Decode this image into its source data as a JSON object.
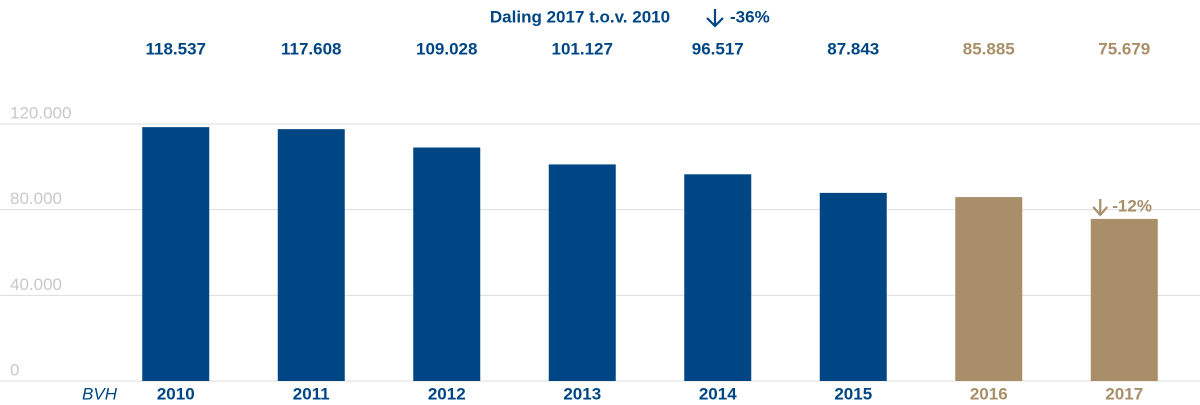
{
  "chart_data": {
    "type": "bar",
    "title": "Daling 2017 t.o.v. 2010",
    "title_change": "-36%",
    "x_label": "BVH",
    "categories": [
      "2010",
      "2011",
      "2012",
      "2013",
      "2014",
      "2015",
      "2016",
      "2017"
    ],
    "values": [
      118537,
      117608,
      109028,
      101127,
      96517,
      87843,
      85885,
      75679
    ],
    "value_labels": [
      "118.537",
      "117.608",
      "109.028",
      "101.127",
      "96.517",
      "87.843",
      "85.885",
      "75.679"
    ],
    "colors": [
      "#004684",
      "#004684",
      "#004684",
      "#004684",
      "#004684",
      "#004684",
      "#a88f6a",
      "#a88f6a"
    ],
    "ylim": [
      0,
      120000
    ],
    "yticks": [
      0,
      {
        "value": 40000,
        "label": "40.000"
      },
      {
        "value": 80000,
        "label": "80.000"
      },
      {
        "value": 120000,
        "label": "120.000"
      }
    ],
    "grid": true,
    "annotation": "-12%"
  }
}
